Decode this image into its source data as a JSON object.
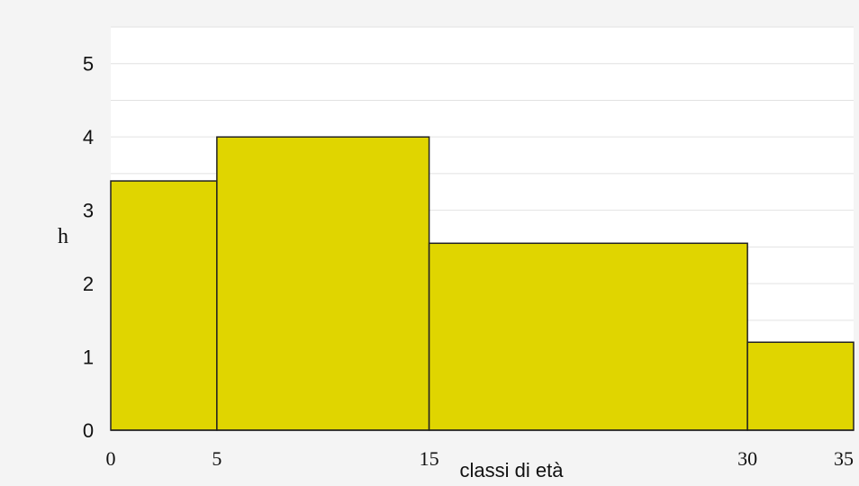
{
  "chart_data": {
    "type": "bar",
    "bins": [
      {
        "from": 0,
        "to": 5,
        "value": 3.4
      },
      {
        "from": 5,
        "to": 15,
        "value": 4.0
      },
      {
        "from": 15,
        "to": 30,
        "value": 2.55
      },
      {
        "from": 30,
        "to": 35,
        "value": 1.2
      }
    ],
    "xticks": [
      "0",
      "5",
      "15",
      "30",
      "35"
    ],
    "yticks": [
      "0",
      "1",
      "2",
      "3",
      "4",
      "5"
    ],
    "xlabel": "classi di età",
    "ylabel": "h",
    "xlim": [
      0,
      35
    ],
    "ylim": [
      0,
      5.5
    ],
    "grid": true,
    "colors": {
      "bar": "#e0d500",
      "bar_edge": "#222222",
      "plot_bg": "#ffffff",
      "page_bg": "#f4f4f4",
      "grid": "#e2e2e2"
    }
  }
}
